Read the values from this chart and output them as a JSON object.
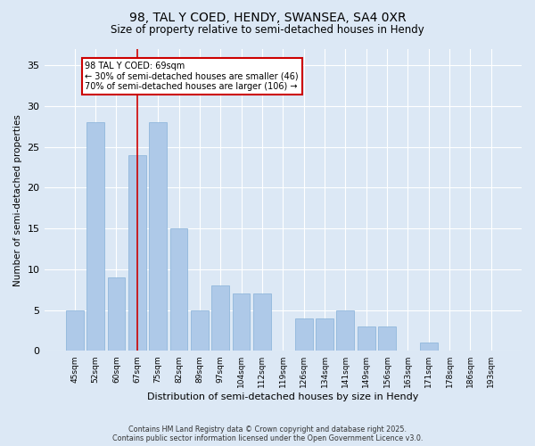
{
  "title1": "98, TAL Y COED, HENDY, SWANSEA, SA4 0XR",
  "title2": "Size of property relative to semi-detached houses in Hendy",
  "xlabel": "Distribution of semi-detached houses by size in Hendy",
  "ylabel": "Number of semi-detached properties",
  "categories": [
    "45sqm",
    "52sqm",
    "60sqm",
    "67sqm",
    "75sqm",
    "82sqm",
    "89sqm",
    "97sqm",
    "104sqm",
    "112sqm",
    "119sqm",
    "126sqm",
    "134sqm",
    "141sqm",
    "149sqm",
    "156sqm",
    "163sqm",
    "171sqm",
    "178sqm",
    "186sqm",
    "193sqm"
  ],
  "values": [
    5,
    28,
    9,
    24,
    28,
    15,
    5,
    8,
    7,
    7,
    0,
    4,
    4,
    5,
    3,
    3,
    0,
    1,
    0,
    0,
    0
  ],
  "bar_color": "#aec9e8",
  "bar_edge_color": "#85b0d8",
  "vline_x": 3,
  "vline_color": "#cc0000",
  "annotation_title": "98 TAL Y COED: 69sqm",
  "annotation_line1": "← 30% of semi-detached houses are smaller (46)",
  "annotation_line2": "70% of semi-detached houses are larger (106) →",
  "annotation_box_color": "#cc0000",
  "ylim": [
    0,
    37
  ],
  "yticks": [
    0,
    5,
    10,
    15,
    20,
    25,
    30,
    35
  ],
  "footer1": "Contains HM Land Registry data © Crown copyright and database right 2025.",
  "footer2": "Contains public sector information licensed under the Open Government Licence v3.0.",
  "bg_color": "#dce8f5",
  "plot_bg_color": "#dce8f5"
}
